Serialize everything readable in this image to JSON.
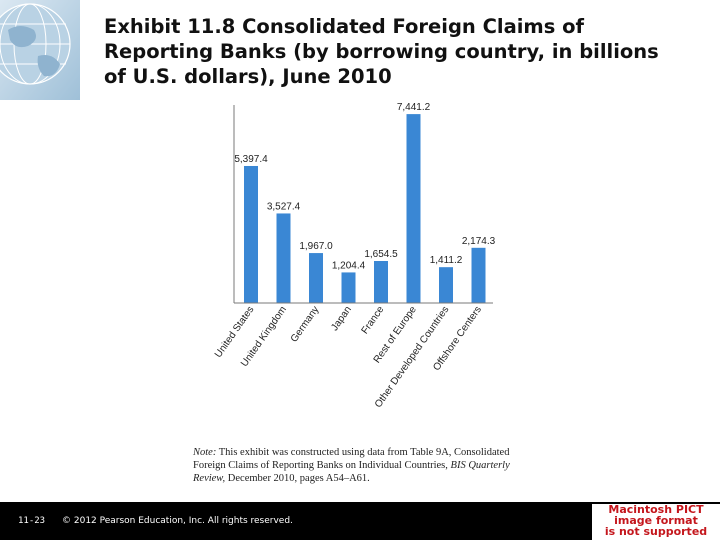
{
  "title": {
    "line1": "Exhibit 11.8  Consolidated Foreign Claims of",
    "line2": "Reporting Banks (by borrowing country, in billions",
    "line3": "of U.S. dollars), June 2010"
  },
  "colors": {
    "bar": "#3a87d4",
    "axis": "#7a7a7a",
    "footer": "#000000",
    "pict_text": "#c4161c"
  },
  "chart_data": {
    "type": "bar",
    "title": "Consolidated Foreign Claims of Reporting Banks (by borrowing country, in billions of U.S. dollars), June 2010",
    "xlabel": "",
    "ylabel": "",
    "ylim": [
      0,
      7800
    ],
    "grid": false,
    "categories": [
      "United States",
      "United Kingdom",
      "Germany",
      "Japan",
      "France",
      "Rest of Europe",
      "Other Developed Countries",
      "Offshore Centers"
    ],
    "values": [
      5397.4,
      3527.4,
      1967.0,
      1204.4,
      1654.5,
      7441.2,
      1411.2,
      2174.3
    ],
    "value_labels": [
      "5,397.4",
      "3,527.4",
      "1,967.0",
      "1,204.4",
      "1,654.5",
      "7,441.2",
      "1,411.2",
      "2,174.3"
    ]
  },
  "note": {
    "label": "Note:",
    "line1": "This exhibit was constructed using data from Table 9A, Consolidated",
    "line2_plain": "Foreign Claims of Reporting Banks on Individual Countries,",
    "line2_italic": "BIS Quarterly",
    "line3_italic": "Review,",
    "line3_plain": "December 2010, pages A54–A61."
  },
  "footer": {
    "slide_number": "11-23",
    "copyright": "© 2012 Pearson Education, Inc. All rights reserved."
  },
  "pict_placeholder": {
    "line1": "Macintosh PICT",
    "line2": "image format",
    "line3": "is not supported"
  }
}
